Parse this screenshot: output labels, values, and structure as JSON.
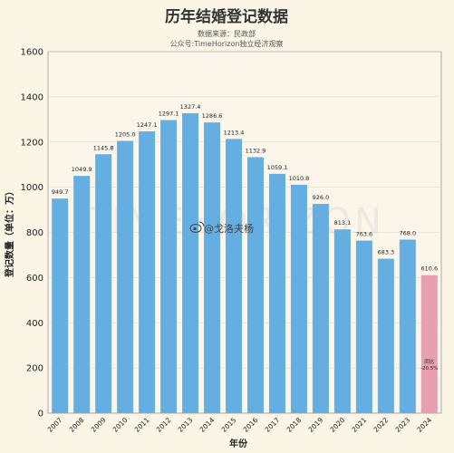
{
  "chart_data": {
    "type": "bar",
    "title": "历年结婚登记数据",
    "subtitle_lines": [
      "数据来源：民政部",
      "公众号:TimeHorizon独立经济观察"
    ],
    "xlabel": "年份",
    "ylabel": "登记数量（单位：万）",
    "ylim": [
      0,
      1600
    ],
    "yticks": [
      "0",
      "200",
      "400",
      "600",
      "800",
      "1000",
      "1200",
      "1400",
      "1600"
    ],
    "grid": true,
    "categories": [
      "2007",
      "2008",
      "2009",
      "2010",
      "2011",
      "2012",
      "2013",
      "2014",
      "2015",
      "2016",
      "2017",
      "2018",
      "2019",
      "2020",
      "2021",
      "2022",
      "2023",
      "2024"
    ],
    "values": [
      949.7,
      1049.9,
      1145.8,
      1205.0,
      1247.1,
      1297.1,
      1327.4,
      1286.6,
      1213.4,
      1132.9,
      1059.1,
      1010.8,
      926.0,
      813.1,
      763.6,
      683.3,
      768.0,
      610.6
    ],
    "value_labels": [
      "949.7",
      "1049.9",
      "1145.8",
      "1205.0",
      "1247.1",
      "1297.1",
      "1327.4",
      "1286.6",
      "1213.4",
      "1132.9",
      "1059.1",
      "1010.8",
      "926.0",
      "813.1",
      "763.6",
      "683.3",
      "768.0",
      "610.6"
    ],
    "bar_color": "#64aee2",
    "highlight_index": 17,
    "highlight_color": "#e8a0b1",
    "annotation": [
      "同比",
      "-20.5%"
    ],
    "watermark": "TIMEHORIZON",
    "social_handle": "@戈洛夫杨"
  }
}
